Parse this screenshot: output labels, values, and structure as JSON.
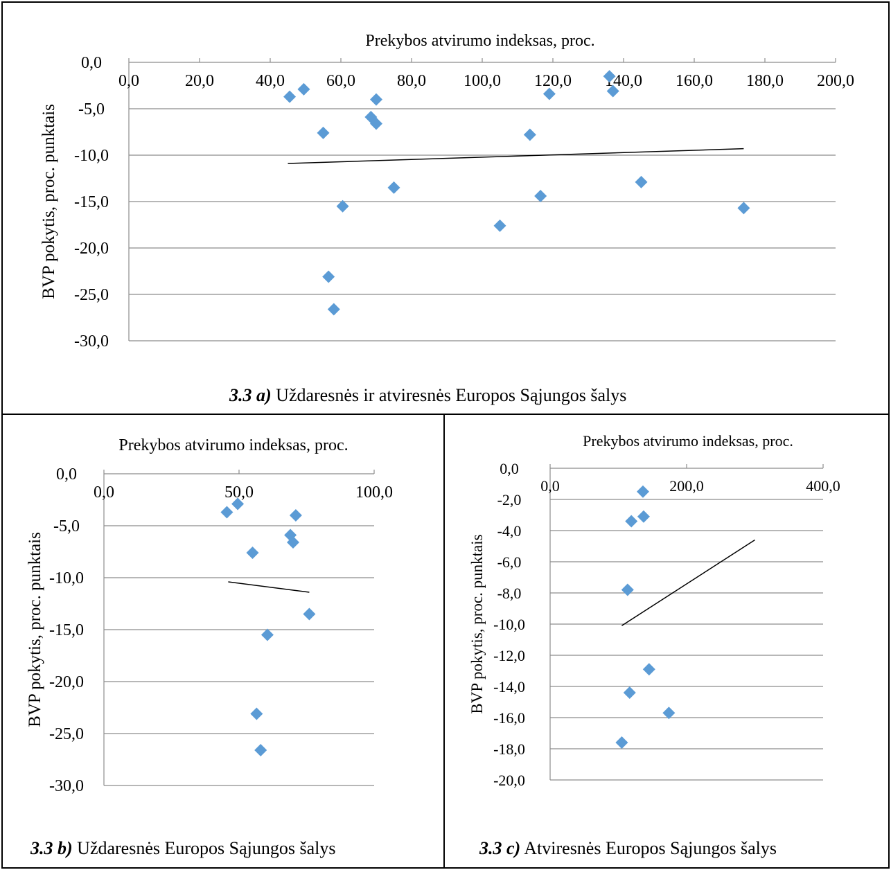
{
  "chart_data": [
    {
      "id": "a",
      "type": "scatter",
      "title": "Prekybos atvirumo indeksas, proc.",
      "ylabel": "BVP pokytis, proc. punktais",
      "xlim": [
        0,
        200
      ],
      "ylim": [
        -30,
        0
      ],
      "xticks": [
        "0,0",
        "20,0",
        "40,0",
        "60,0",
        "80,0",
        "100,0",
        "120,0",
        "140,0",
        "160,0",
        "180,0",
        "200,0"
      ],
      "yticks": [
        "0,0",
        "-5,0",
        "-10,0",
        "-15,0",
        "-20,0",
        "-25,0",
        "-30,0"
      ],
      "x_axis_position": "top",
      "grid": true,
      "marker_color": "#5B9BD5",
      "points": [
        {
          "x": 45.5,
          "y": -3.7
        },
        {
          "x": 49.5,
          "y": -2.9
        },
        {
          "x": 55.0,
          "y": -7.6
        },
        {
          "x": 56.5,
          "y": -23.1
        },
        {
          "x": 58.0,
          "y": -26.6
        },
        {
          "x": 60.5,
          "y": -15.5
        },
        {
          "x": 68.5,
          "y": -5.9
        },
        {
          "x": 70.0,
          "y": -6.6
        },
        {
          "x": 70.0,
          "y": -4.0
        },
        {
          "x": 75.0,
          "y": -13.5
        },
        {
          "x": 105.0,
          "y": -17.6
        },
        {
          "x": 113.5,
          "y": -7.8
        },
        {
          "x": 116.5,
          "y": -14.4
        },
        {
          "x": 119.0,
          "y": -3.4
        },
        {
          "x": 136.0,
          "y": -1.5
        },
        {
          "x": 137.0,
          "y": -3.1
        },
        {
          "x": 145.0,
          "y": -12.9
        },
        {
          "x": 174.0,
          "y": -15.7
        }
      ],
      "trendline": [
        {
          "x": 45.0,
          "y": -10.9
        },
        {
          "x": 174.0,
          "y": -9.3
        }
      ],
      "caption_num": "3.3 a)",
      "caption_text": " Uždaresnės ir atviresnės Europos Sąjungos šalys"
    },
    {
      "id": "b",
      "type": "scatter",
      "title": "Prekybos atvirumo indeksas, proc.",
      "ylabel": "BVP pokytis, proc. punktais",
      "xlim": [
        0,
        100
      ],
      "ylim": [
        -30,
        0
      ],
      "xticks": [
        "0,0",
        "50,0",
        "100,0"
      ],
      "yticks": [
        "0,0",
        "-5,0",
        "-10,0",
        "-15,0",
        "-20,0",
        "-25,0",
        "-30,0"
      ],
      "x_axis_position": "top",
      "grid": true,
      "marker_color": "#5B9BD5",
      "points": [
        {
          "x": 45.5,
          "y": -3.7
        },
        {
          "x": 49.5,
          "y": -2.9
        },
        {
          "x": 55.0,
          "y": -7.6
        },
        {
          "x": 56.5,
          "y": -23.1
        },
        {
          "x": 58.0,
          "y": -26.6
        },
        {
          "x": 60.5,
          "y": -15.5
        },
        {
          "x": 69.0,
          "y": -5.9
        },
        {
          "x": 70.0,
          "y": -6.6
        },
        {
          "x": 71.0,
          "y": -4.0
        },
        {
          "x": 76.0,
          "y": -13.5
        }
      ],
      "trendline": [
        {
          "x": 46.0,
          "y": -10.4
        },
        {
          "x": 76.0,
          "y": -11.4
        }
      ],
      "caption_num": "3.3 b)",
      "caption_text": " Uždaresnės Europos Sąjungos šalys"
    },
    {
      "id": "c",
      "type": "scatter",
      "title": "Prekybos atvirumo indeksas, proc.",
      "ylabel": "BVP pokytis, proc. punktais",
      "xlim": [
        0,
        400
      ],
      "ylim": [
        -20,
        0
      ],
      "xticks": [
        "0,0",
        "200,0",
        "400,0"
      ],
      "yticks": [
        "0,0",
        "-2,0",
        "-4,0",
        "-6,0",
        "-8,0",
        "-10,0",
        "-12,0",
        "-14,0",
        "-16,0",
        "-18,0",
        "-20,0"
      ],
      "x_axis_position": "top",
      "grid": true,
      "marker_color": "#5B9BD5",
      "points": [
        {
          "x": 136.0,
          "y": -1.5
        },
        {
          "x": 119.0,
          "y": -3.4
        },
        {
          "x": 137.0,
          "y": -3.1
        },
        {
          "x": 113.5,
          "y": -7.8
        },
        {
          "x": 145.0,
          "y": -12.9
        },
        {
          "x": 116.5,
          "y": -14.4
        },
        {
          "x": 174.0,
          "y": -15.7
        },
        {
          "x": 105.0,
          "y": -17.6
        }
      ],
      "trendline": [
        {
          "x": 105.0,
          "y": -10.1
        },
        {
          "x": 300.0,
          "y": -4.6
        }
      ],
      "caption_num": "3.3 c)",
      "caption_text": " Atviresnės Europos Sąjungos šalys"
    }
  ]
}
